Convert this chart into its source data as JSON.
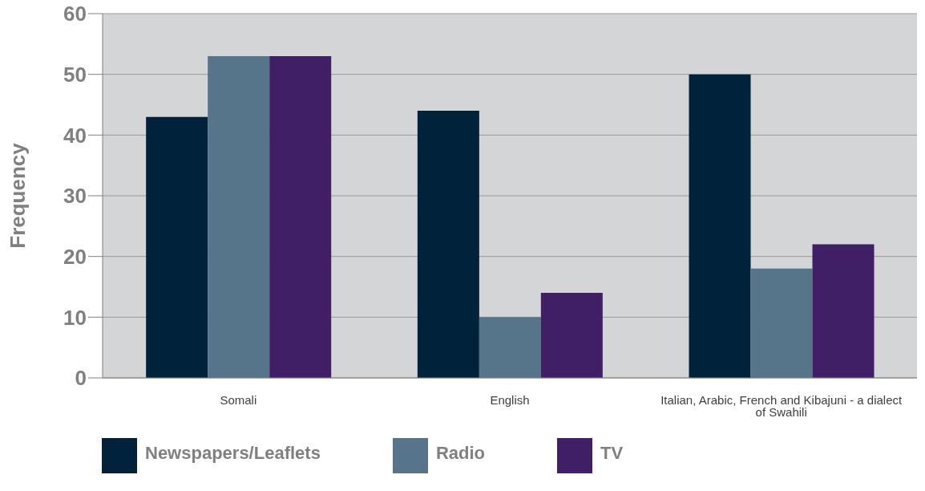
{
  "chart_data": {
    "type": "bar",
    "ylabel": "Frequency",
    "categories": [
      "Somali",
      "English",
      "Italian, Arabic, French and Kibajuni - a dialect of Swahili"
    ],
    "series": [
      {
        "name": "Newspapers/Leaflets",
        "color": "#00223a",
        "values": [
          43,
          44,
          50
        ]
      },
      {
        "name": "Radio",
        "color": "#56748a",
        "values": [
          53,
          10,
          18
        ]
      },
      {
        "name": "TV",
        "color": "#401f66",
        "values": [
          53,
          14,
          22
        ]
      }
    ],
    "ylim": [
      0,
      60
    ],
    "yticks": [
      0,
      10,
      20,
      30,
      40,
      50,
      60
    ],
    "grid": "y",
    "legend": "bottom"
  }
}
